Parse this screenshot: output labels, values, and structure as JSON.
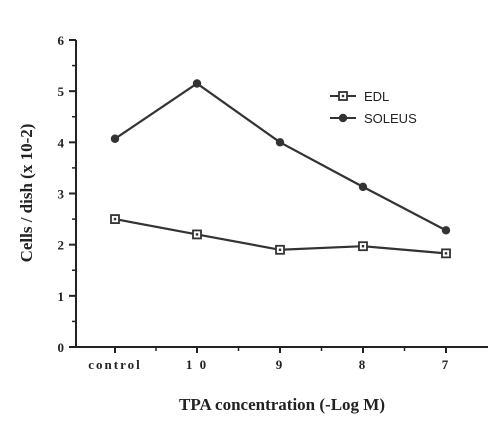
{
  "chart_data": {
    "type": "line",
    "categories": [
      "control",
      "1 0",
      "9",
      "8",
      "7"
    ],
    "xlabel": "TPA concentration (-Log M)",
    "ylabel": "Cells / dish (x 10-2)",
    "ylim": [
      0,
      6
    ],
    "yticks": [
      0,
      1,
      2,
      3,
      4,
      5,
      6
    ],
    "legend_position": "top-right",
    "series": [
      {
        "name": "EDL",
        "marker": "open-square",
        "color": "#333333",
        "values": [
          2.5,
          2.2,
          1.9,
          1.97,
          1.83
        ]
      },
      {
        "name": "SOLEUS",
        "marker": "filled-circle",
        "color": "#333333",
        "values": [
          4.07,
          5.15,
          4.0,
          3.13,
          2.28
        ]
      }
    ]
  }
}
